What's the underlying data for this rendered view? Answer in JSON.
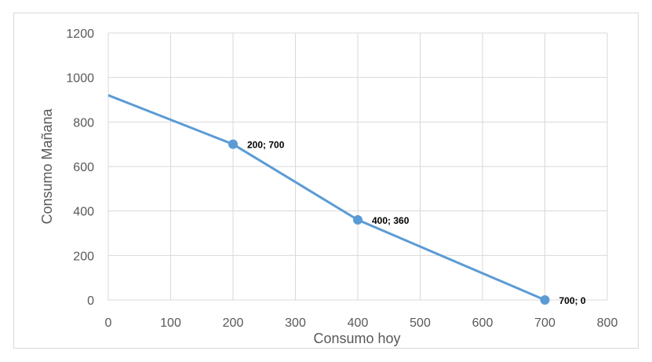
{
  "chart_data": {
    "type": "scatter",
    "title": "",
    "xlabel": "Consumo hoy",
    "ylabel": "Consumo Mañana",
    "xlim": [
      0,
      800
    ],
    "ylim": [
      0,
      1200
    ],
    "xticks": [
      0,
      100,
      200,
      300,
      400,
      500,
      600,
      700,
      800
    ],
    "yticks": [
      0,
      200,
      400,
      600,
      800,
      1000,
      1200
    ],
    "grid": true,
    "legend": "none",
    "line": {
      "x": [
        0,
        200,
        400,
        700
      ],
      "y": [
        920,
        700,
        360,
        0
      ]
    },
    "points": [
      {
        "x": 200,
        "y": 700,
        "label": "200; 700"
      },
      {
        "x": 400,
        "y": 360,
        "label": "400; 360"
      },
      {
        "x": 700,
        "y": 0,
        "label": "700; 0"
      }
    ],
    "colors": {
      "series": "#5b9bd5",
      "grid": "#d9d9d9"
    }
  }
}
